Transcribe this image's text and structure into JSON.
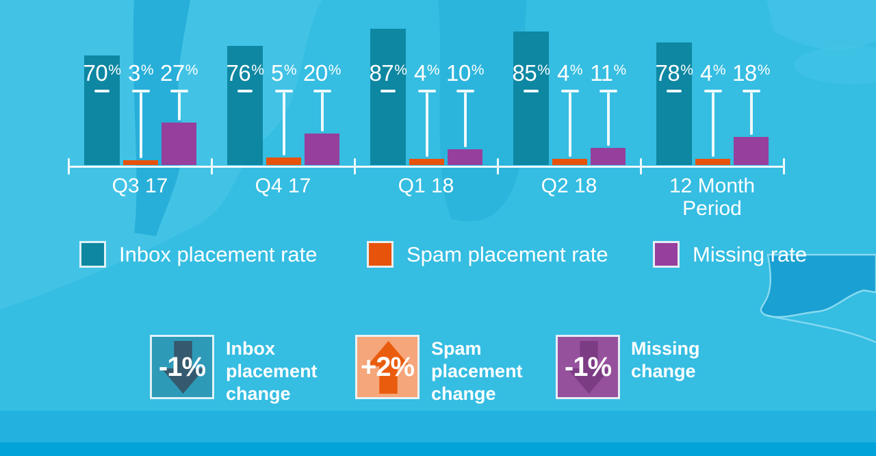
{
  "chart_data": {
    "type": "bar",
    "title": "",
    "categories": [
      "Q3 17",
      "Q4 17",
      "Q1 18",
      "Q2 18",
      "12 Month Period"
    ],
    "series": [
      {
        "name": "Inbox placement rate",
        "color": "#0e87a2",
        "values": [
          70,
          76,
          87,
          85,
          78
        ]
      },
      {
        "name": "Spam placement rate",
        "color": "#e8530b",
        "values": [
          3,
          5,
          4,
          4,
          4
        ]
      },
      {
        "name": "Missing rate",
        "color": "#963f9c",
        "values": [
          27,
          20,
          10,
          11,
          18
        ]
      }
    ],
    "value_suffix": "%",
    "ylim": [
      0,
      100
    ],
    "grid": false,
    "legend_position": "bottom"
  },
  "changes": [
    {
      "value": "-1%",
      "direction": "down",
      "label": "Inbox placement change",
      "box_color": "#2d9bb8",
      "arrow_color": "#35596e"
    },
    {
      "value": "+2%",
      "direction": "up",
      "label": "Spam placement change",
      "box_color": "#f5a67a",
      "arrow_color": "#ea5c0d"
    },
    {
      "value": "-1%",
      "direction": "down",
      "label": "Missing change",
      "box_color": "#96519c",
      "arrow_color": "#7c3c84"
    }
  ],
  "colors": {
    "background": "#35bde2",
    "map_light": "#4bc7e9",
    "map_dark": "#22abd6",
    "map_deep": "#189dd1",
    "map_coastline": "#93def2",
    "bottom_band": "#00a2d8",
    "axis": "#eef9fc",
    "text": "#ffffff"
  }
}
